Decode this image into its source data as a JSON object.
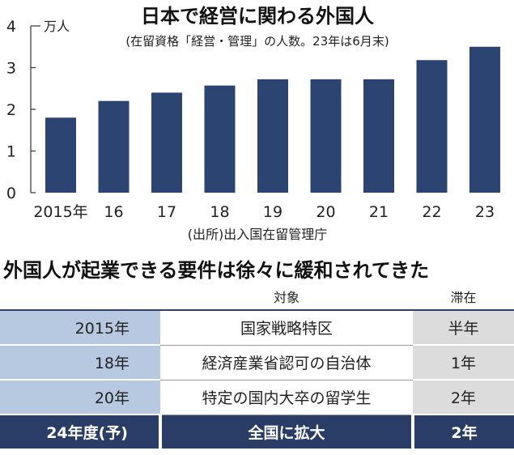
{
  "colors": {
    "bar": "#2b4471",
    "axis": "#333333",
    "header_band": "#2a3d66",
    "year_col": "#b7c9e0",
    "stay_col": "#dcdcdc"
  },
  "chart_data": {
    "type": "bar",
    "title": "日本で経営に関わる外国人",
    "subtitle": "(在留資格「経営・管理」の人数。23年は6月末)",
    "unit_label": "万人",
    "categories": [
      "2015年",
      "16",
      "17",
      "18",
      "19",
      "20",
      "21",
      "22",
      "23"
    ],
    "values": [
      1.8,
      2.2,
      2.4,
      2.57,
      2.72,
      2.72,
      2.72,
      3.18,
      3.5
    ],
    "ylim": [
      0,
      4
    ],
    "yticks": [
      "0",
      "1",
      "2",
      "3",
      "4"
    ],
    "source": "(出所)出入国在留管理庁",
    "grid": false
  },
  "table": {
    "title": "外国人が起業できる要件は徐々に緩和されてきた",
    "headers": {
      "year": "",
      "target": "対象",
      "stay": "滞在"
    },
    "rows": [
      {
        "year": "2015年",
        "target": "国家戦略特区",
        "stay": "半年"
      },
      {
        "year": "18年",
        "target": "経済産業省認可の自治体",
        "stay": "1年"
      },
      {
        "year": "20年",
        "target": "特定の国内大卒の留学生",
        "stay": "2年"
      },
      {
        "year": "24年度(予)",
        "target": "全国に拡大",
        "stay": "2年"
      }
    ]
  }
}
